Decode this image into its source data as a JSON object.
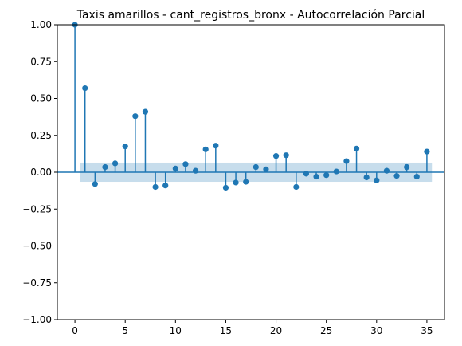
{
  "chart_data": {
    "type": "scatter",
    "subtype": "stem",
    "title": "Taxis amarillos - cant_registros_bronx - Autocorrelación Parcial",
    "xlabel": "",
    "ylabel": "",
    "xlim": [
      -1.75,
      36.75
    ],
    "ylim": [
      -1.0,
      1.0
    ],
    "xticks": [
      0,
      5,
      10,
      15,
      20,
      25,
      30,
      35
    ],
    "xtick_labels": [
      "0",
      "5",
      "10",
      "15",
      "20",
      "25",
      "30",
      "35"
    ],
    "yticks": [
      -1.0,
      -0.75,
      -0.5,
      -0.25,
      0.0,
      0.25,
      0.5,
      0.75,
      1.0
    ],
    "ytick_labels": [
      "−1.00",
      "−0.75",
      "−0.50",
      "−0.25",
      "0.00",
      "0.25",
      "0.50",
      "0.75",
      "1.00"
    ],
    "grid": false,
    "colors": {
      "series": "#1f77b4",
      "confidence_band": "#1f77b4",
      "confidence_alpha": 0.25
    },
    "confidence_band": {
      "x_start": 0.5,
      "x_end": 35.5,
      "lower": -0.065,
      "upper": 0.065
    },
    "series": [
      {
        "x": [
          0,
          1,
          2,
          3,
          4,
          5,
          6,
          7,
          8,
          9,
          10,
          11,
          12,
          13,
          14,
          15,
          16,
          17,
          18,
          19,
          20,
          21,
          22,
          23,
          24,
          25,
          26,
          27,
          28,
          29,
          30,
          31,
          32,
          33,
          34,
          35
        ],
        "values": [
          1.0,
          0.57,
          -0.08,
          0.035,
          0.06,
          0.175,
          0.38,
          0.41,
          -0.1,
          -0.09,
          0.025,
          0.055,
          0.01,
          0.155,
          0.18,
          -0.105,
          -0.07,
          -0.065,
          0.035,
          0.02,
          0.11,
          0.115,
          -0.1,
          -0.01,
          -0.03,
          -0.02,
          0.005,
          0.075,
          0.16,
          -0.035,
          -0.055,
          0.01,
          -0.025,
          0.035,
          -0.03,
          0.14
        ]
      }
    ]
  }
}
